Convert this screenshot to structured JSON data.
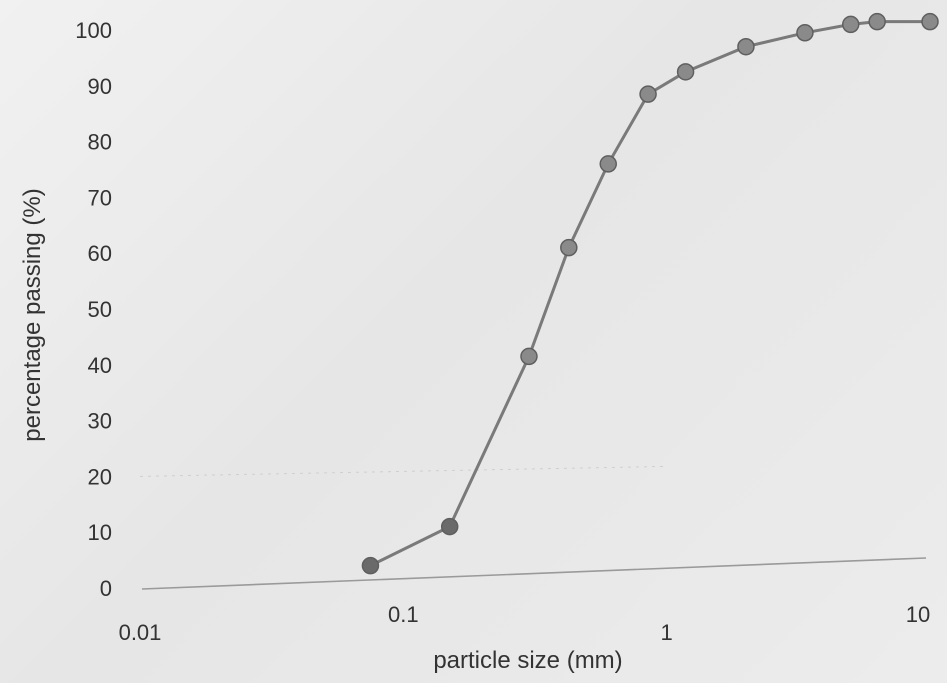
{
  "chart_data": {
    "type": "line",
    "xlabel": "particle size (mm)",
    "ylabel": "percentage passing (%)",
    "xscale": "log",
    "xlim": [
      0.01,
      10
    ],
    "ylim": [
      0,
      100
    ],
    "x_ticks": [
      "0.01",
      "0.1",
      "1",
      "10"
    ],
    "y_ticks": [
      "0",
      "10",
      "20",
      "30",
      "40",
      "50",
      "60",
      "70",
      "80",
      "90",
      "100"
    ],
    "grid": false,
    "legend": "none",
    "series": [
      {
        "color": "#7a7a7a",
        "x": [
          0.075,
          0.15,
          0.3,
          0.425,
          0.6,
          0.85,
          1.18,
          2.0,
          3.35,
          5.0,
          6.3,
          10.0
        ],
        "y": [
          4,
          11,
          41.5,
          61,
          76,
          88.5,
          92.5,
          97,
          99.5,
          101,
          101.5,
          101.5
        ]
      }
    ]
  }
}
